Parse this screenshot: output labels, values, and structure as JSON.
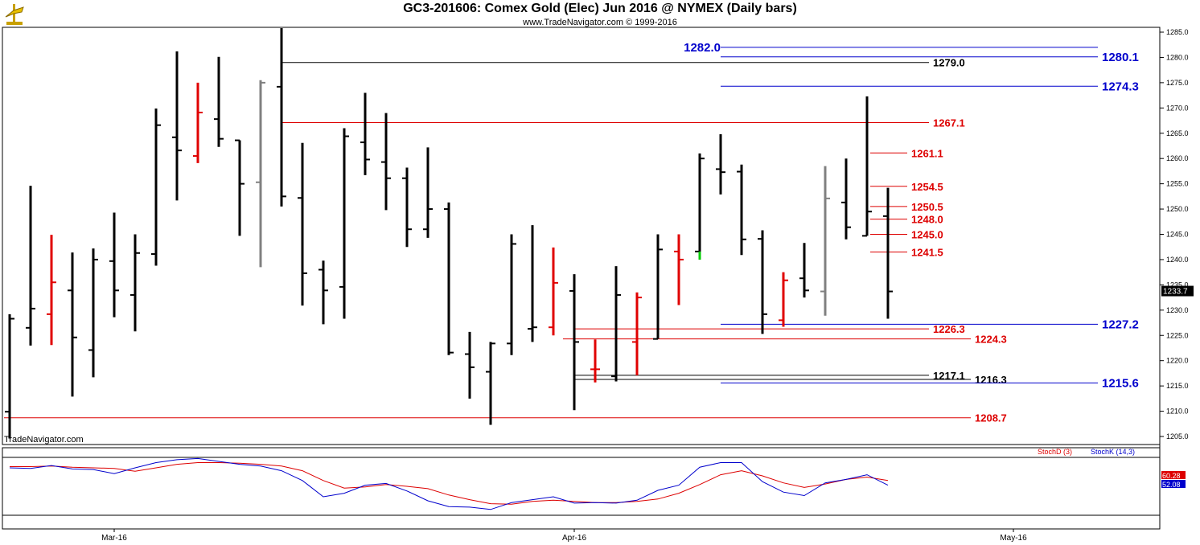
{
  "header": {
    "title": "GC3-201606:  Comex Gold (Elec) Jun 2016 @ NYMEX  (Daily bars)",
    "subtitle": "www.TradeNavigator.com © 1999-2016"
  },
  "watermark": "TradeNavigator.com",
  "colors": {
    "up_bar": "#e00000",
    "down_bar": "#000000",
    "neutral_bar": "#808080",
    "green_tick": "#00cc00",
    "red_level": "#dd0000",
    "blue_level": "#0000cc",
    "black_level": "#000000",
    "stoch_d": "#dd0000",
    "stoch_k": "#0000cc"
  },
  "chart_data": [
    {
      "type": "ohlc",
      "title": "GC3-201606:  Comex Gold (Elec) Jun 2016 @ NYMEX  (Daily bars)",
      "ylim": [
        1205,
        1285
      ],
      "y_ticks": [
        1205.0,
        1210.0,
        1215.0,
        1220.0,
        1225.0,
        1230.0,
        1235.0,
        1240.0,
        1245.0,
        1250.0,
        1255.0,
        1260.0,
        1265.0,
        1270.0,
        1275.0,
        1280.0,
        1285.0
      ],
      "x_labels": [
        {
          "label": "Mar-16",
          "bar": 5
        },
        {
          "label": "Apr-16",
          "bar": 27
        },
        {
          "label": "May-16",
          "bar": 48
        }
      ],
      "last_price": "1233.7",
      "bars": [
        {
          "o": 1209.9,
          "h": 1229.2,
          "l": 1204.6,
          "c": 1228.3,
          "color": "black"
        },
        {
          "o": 1226.5,
          "h": 1254.6,
          "l": 1223.0,
          "c": 1230.3,
          "color": "black"
        },
        {
          "o": 1229.2,
          "h": 1244.9,
          "l": 1223.1,
          "c": 1235.5,
          "color": "red"
        },
        {
          "o": 1233.9,
          "h": 1241.4,
          "l": 1212.9,
          "c": 1224.6,
          "color": "black"
        },
        {
          "o": 1222.1,
          "h": 1242.2,
          "l": 1216.7,
          "c": 1240.0,
          "color": "black"
        },
        {
          "o": 1239.7,
          "h": 1249.3,
          "l": 1228.6,
          "c": 1233.9,
          "color": "black"
        },
        {
          "o": 1233.0,
          "h": 1245.0,
          "l": 1225.8,
          "c": 1241.3,
          "color": "black"
        },
        {
          "o": 1241.1,
          "h": 1269.9,
          "l": 1238.8,
          "c": 1266.6,
          "color": "black"
        },
        {
          "o": 1264.2,
          "h": 1281.2,
          "l": 1251.7,
          "c": 1261.6,
          "color": "black"
        },
        {
          "o": 1260.5,
          "h": 1275.0,
          "l": 1259.1,
          "c": 1269.1,
          "color": "red"
        },
        {
          "o": 1267.8,
          "h": 1280.1,
          "l": 1262.3,
          "c": 1263.9,
          "color": "black"
        },
        {
          "o": 1263.6,
          "h": 1263.6,
          "l": 1244.7,
          "c": 1255.0,
          "color": "black"
        },
        {
          "o": 1255.3,
          "h": 1275.5,
          "l": 1238.5,
          "c": 1275.0,
          "color": "gray"
        },
        {
          "o": 1274.2,
          "h": 1285.8,
          "l": 1250.5,
          "c": 1252.5,
          "color": "black"
        },
        {
          "o": 1252.2,
          "h": 1263.1,
          "l": 1230.9,
          "c": 1237.3,
          "color": "black"
        },
        {
          "o": 1238.0,
          "h": 1239.8,
          "l": 1227.2,
          "c": 1233.9,
          "color": "black"
        },
        {
          "o": 1234.6,
          "h": 1266.0,
          "l": 1228.3,
          "c": 1264.4,
          "color": "black"
        },
        {
          "o": 1263.2,
          "h": 1273.0,
          "l": 1256.7,
          "c": 1259.8,
          "color": "black"
        },
        {
          "o": 1259.3,
          "h": 1269.0,
          "l": 1249.8,
          "c": 1256.1,
          "color": "black"
        },
        {
          "o": 1256.1,
          "h": 1258.2,
          "l": 1242.5,
          "c": 1246.0,
          "color": "black"
        },
        {
          "o": 1246.0,
          "h": 1262.2,
          "l": 1244.3,
          "c": 1250.0,
          "color": "black"
        },
        {
          "o": 1250.0,
          "h": 1251.3,
          "l": 1221.1,
          "c": 1221.6,
          "color": "black"
        },
        {
          "o": 1221.3,
          "h": 1225.7,
          "l": 1212.5,
          "c": 1218.7,
          "color": "black"
        },
        {
          "o": 1217.8,
          "h": 1223.7,
          "l": 1207.3,
          "c": 1223.4,
          "color": "black"
        },
        {
          "o": 1223.4,
          "h": 1245.0,
          "l": 1221.1,
          "c": 1243.1,
          "color": "black"
        },
        {
          "o": 1226.3,
          "h": 1246.8,
          "l": 1223.7,
          "c": 1226.6,
          "color": "black"
        },
        {
          "o": 1226.6,
          "h": 1242.4,
          "l": 1225.0,
          "c": 1235.4,
          "color": "red"
        },
        {
          "o": 1233.8,
          "h": 1237.1,
          "l": 1210.2,
          "c": 1223.7,
          "color": "black"
        },
        {
          "o": 1218.3,
          "h": 1224.2,
          "l": 1215.7,
          "c": 1218.3,
          "color": "red"
        },
        {
          "o": 1216.9,
          "h": 1238.7,
          "l": 1215.9,
          "c": 1233.0,
          "color": "black"
        },
        {
          "o": 1223.7,
          "h": 1233.5,
          "l": 1217.1,
          "c": 1232.5,
          "color": "red"
        },
        {
          "o": 1224.3,
          "h": 1245.0,
          "l": 1224.3,
          "c": 1242.0,
          "color": "black"
        },
        {
          "o": 1241.6,
          "h": 1245.0,
          "l": 1231.0,
          "c": 1240.0,
          "color": "red"
        },
        {
          "o": 1241.6,
          "h": 1261.0,
          "l": 1240.0,
          "c": 1260.0,
          "color": "black"
        },
        {
          "o": 1257.9,
          "h": 1264.8,
          "l": 1252.9,
          "c": 1257.3,
          "color": "black"
        },
        {
          "o": 1257.4,
          "h": 1258.8,
          "l": 1240.9,
          "c": 1244.0,
          "color": "black"
        },
        {
          "o": 1244.1,
          "h": 1245.8,
          "l": 1225.3,
          "c": 1229.2,
          "color": "black"
        },
        {
          "o": 1228.0,
          "h": 1237.5,
          "l": 1226.7,
          "c": 1235.9,
          "color": "red"
        },
        {
          "o": 1236.3,
          "h": 1243.3,
          "l": 1232.5,
          "c": 1233.9,
          "color": "black"
        },
        {
          "o": 1233.7,
          "h": 1258.5,
          "l": 1228.9,
          "c": 1252.1,
          "color": "gray"
        },
        {
          "o": 1251.3,
          "h": 1260.0,
          "l": 1244.0,
          "c": 1246.4,
          "color": "black"
        },
        {
          "o": 1244.7,
          "h": 1272.3,
          "l": 1244.7,
          "c": 1249.5,
          "color": "black"
        },
        {
          "o": 1248.6,
          "h": 1254.2,
          "l": 1228.3,
          "c": 1233.7,
          "color": "black"
        }
      ],
      "levels": [
        {
          "label": "1282.0",
          "value": 1282.0,
          "color": "blue",
          "side": "left"
        },
        {
          "label": "1280.1",
          "value": 1280.1,
          "color": "blue",
          "side": "right"
        },
        {
          "label": "1279.0",
          "value": 1279.0,
          "color": "black",
          "side": "mid"
        },
        {
          "label": "1274.3",
          "value": 1274.3,
          "color": "blue",
          "side": "right"
        },
        {
          "label": "1267.1",
          "value": 1267.1,
          "color": "red",
          "side": "mid"
        },
        {
          "label": "1261.1",
          "value": 1261.1,
          "color": "red",
          "side": "near"
        },
        {
          "label": "1254.5",
          "value": 1254.5,
          "color": "red",
          "side": "near"
        },
        {
          "label": "1250.5",
          "value": 1250.5,
          "color": "red",
          "side": "near"
        },
        {
          "label": "1248.0",
          "value": 1248.0,
          "color": "red",
          "side": "near"
        },
        {
          "label": "1245.0",
          "value": 1245.0,
          "color": "red",
          "side": "near"
        },
        {
          "label": "1241.5",
          "value": 1241.5,
          "color": "red",
          "side": "near"
        },
        {
          "label": "1227.2",
          "value": 1227.2,
          "color": "blue",
          "side": "right"
        },
        {
          "label": "1226.3",
          "value": 1226.3,
          "color": "red",
          "side": "mid"
        },
        {
          "label": "1224.3",
          "value": 1224.3,
          "color": "red",
          "side": "low"
        },
        {
          "label": "1217.1",
          "value": 1217.1,
          "color": "black",
          "side": "mid"
        },
        {
          "label": "1216.3",
          "value": 1216.3,
          "color": "black",
          "side": "low"
        },
        {
          "label": "1215.6",
          "value": 1215.6,
          "color": "blue",
          "side": "right"
        },
        {
          "label": "1208.7",
          "value": 1208.7,
          "color": "red",
          "side": "low"
        }
      ]
    },
    {
      "type": "line",
      "title": "",
      "ylim": [
        0,
        100
      ],
      "legend": [
        {
          "name": "StochD (3)",
          "color": "red"
        },
        {
          "name": "StochK (14,3)",
          "color": "blue"
        }
      ],
      "last_values": {
        "d": "60.28",
        "k": "52.08"
      },
      "series": [
        {
          "name": "StochD (3)",
          "values": [
            84,
            84,
            85,
            83,
            82,
            81,
            76,
            82,
            88,
            91,
            91,
            90,
            88,
            85,
            77,
            60,
            47,
            49,
            53,
            50,
            46,
            35,
            27,
            20,
            19,
            24,
            26,
            24,
            22,
            22,
            24,
            28,
            38,
            53,
            70,
            77,
            68,
            56,
            48,
            54,
            62,
            66,
            60
          ]
        },
        {
          "name": "StochK (14,3)",
          "values": [
            82,
            81,
            86,
            80,
            79,
            72,
            82,
            91,
            96,
            98,
            93,
            88,
            85,
            77,
            60,
            32,
            38,
            52,
            55,
            42,
            25,
            15,
            14,
            10,
            22,
            27,
            32,
            21,
            22,
            21,
            26,
            43,
            52,
            83,
            91,
            91,
            58,
            40,
            34,
            56,
            62,
            70,
            52
          ]
        }
      ]
    }
  ]
}
